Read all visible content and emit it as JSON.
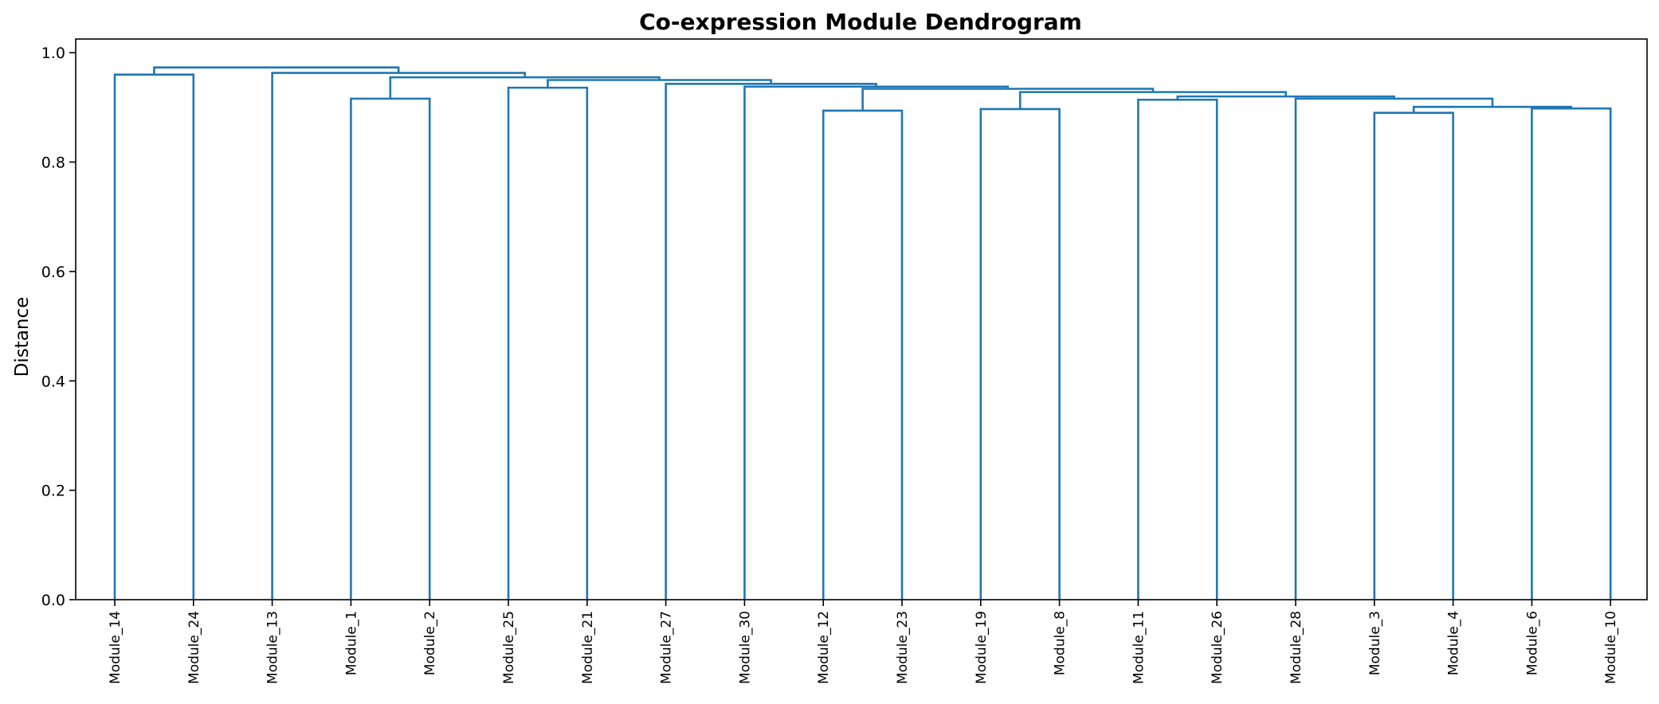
{
  "chart_data": {
    "type": "dendrogram",
    "title": "Co-expression Module Dendrogram",
    "xlabel": "",
    "ylabel": "Distance",
    "ylim": [
      0,
      1.025
    ],
    "yticks": [
      "0.0",
      "0.2",
      "0.4",
      "0.6",
      "0.8",
      "1.0"
    ],
    "grid": false,
    "line_color": "#1f77b4",
    "leaves": [
      "Module_14",
      "Module_24",
      "Module_13",
      "Module_1",
      "Module_2",
      "Module_25",
      "Module_21",
      "Module_27",
      "Module_30",
      "Module_12",
      "Module_23",
      "Module_19",
      "Module_8",
      "Module_11",
      "Module_26",
      "Module_28",
      "Module_3",
      "Module_4",
      "Module_6",
      "Module_10"
    ],
    "links": [
      {
        "left": "Module_14",
        "right": "Module_24",
        "height": 0.96
      },
      {
        "left": "Module_1",
        "right": "Module_2",
        "height": 0.916
      },
      {
        "left": "Module_25",
        "right": "Module_21",
        "height": 0.936
      },
      {
        "left": "Module_12",
        "right": "Module_23",
        "height": 0.894
      },
      {
        "left": "Module_19",
        "right": "Module_8",
        "height": 0.897
      },
      {
        "left": "Module_11",
        "right": "Module_26",
        "height": 0.914
      },
      {
        "left": "Module_3",
        "right": "Module_4",
        "height": 0.89
      },
      {
        "left": "Module_6",
        "right": "Module_10",
        "height": 0.898
      },
      {
        "left": "[Module_3, Module_4]",
        "right": "[Module_6, Module_10]",
        "height": 0.901
      },
      {
        "left": "Module_28",
        "right": "[Module_3, Module_4, Module_6, Module_10]",
        "height": 0.916
      },
      {
        "left": "[Module_11, Module_26]",
        "right": "[Module_28, Module_3, Module_4, Module_6, Module_10]",
        "height": 0.92
      },
      {
        "left": "[Module_19, Module_8]",
        "right": "[Module_11 … Module_10]",
        "height": 0.928
      },
      {
        "left": "[Module_12, Module_23]",
        "right": "[Module_19 … Module_10]",
        "height": 0.934
      },
      {
        "left": "Module_30",
        "right": "[Module_12 … Module_10]",
        "height": 0.938
      },
      {
        "left": "Module_27",
        "right": "[Module_30 … Module_10]",
        "height": 0.943
      },
      {
        "left": "[Module_25, Module_21]",
        "right": "[Module_27 … Module_10]",
        "height": 0.95
      },
      {
        "left": "[Module_1, Module_2]",
        "right": "[Module_25 … Module_10]",
        "height": 0.955
      },
      {
        "left": "Module_13",
        "right": "[Module_1 … Module_10]",
        "height": 0.963
      },
      {
        "left": "[Module_14, Module_24]",
        "right": "[Module_13 … Module_10]",
        "height": 0.973
      }
    ]
  }
}
